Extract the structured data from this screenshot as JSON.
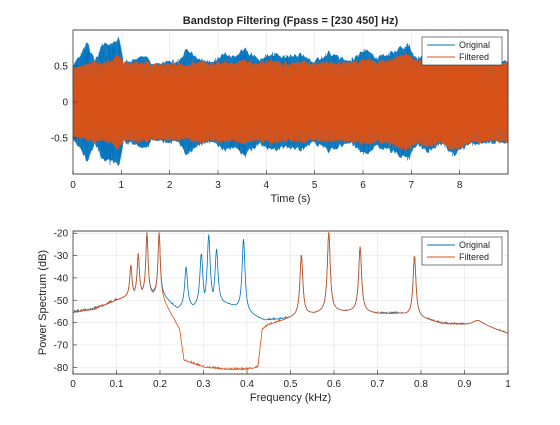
{
  "chart_data": [
    {
      "type": "line",
      "title": "Bandstop Filtering  (Fpass = [230 450] Hz)",
      "xlabel": "Time (s)",
      "ylabel": "",
      "xlim": [
        0,
        9
      ],
      "ylim": [
        -1.0,
        1.0
      ],
      "xticks": [
        0,
        1,
        2,
        3,
        4,
        5,
        6,
        7,
        8
      ],
      "yticks": [
        -0.5,
        0,
        0.5
      ],
      "xtick_labels": [
        "0",
        "1",
        "2",
        "3",
        "4",
        "5",
        "6",
        "7",
        "8"
      ],
      "ytick_labels": [
        "-0.5",
        "0",
        "0.5"
      ],
      "grid": true,
      "legend": {
        "position": "top-right",
        "entries": [
          "Original",
          "Filtered"
        ]
      },
      "series": [
        {
          "name": "Original",
          "color": "#0072BD",
          "envelope": {
            "x": [
              0.0,
              0.3,
              0.45,
              0.62,
              0.95,
              1.05,
              1.55,
              1.62,
              2.2,
              2.35,
              2.6,
              2.85,
              3.15,
              3.3,
              3.55,
              3.85,
              4.1,
              4.35,
              4.75,
              4.95,
              5.3,
              5.7,
              6.05,
              6.3,
              6.6,
              6.95,
              7.1,
              7.35,
              7.65,
              7.85,
              8.2,
              8.6,
              8.9
            ],
            "amplitude": [
              0.52,
              0.86,
              0.6,
              0.84,
              0.92,
              0.58,
              0.66,
              0.55,
              0.6,
              0.78,
              0.62,
              0.58,
              0.7,
              0.66,
              0.78,
              0.6,
              0.72,
              0.66,
              0.7,
              0.58,
              0.72,
              0.58,
              0.76,
              0.64,
              0.72,
              0.84,
              0.62,
              0.72,
              0.6,
              0.78,
              0.62,
              0.58,
              0.6
            ]
          }
        },
        {
          "name": "Filtered",
          "color": "#D95319",
          "envelope": {
            "x": [
              0.0,
              0.3,
              0.45,
              0.62,
              0.95,
              1.05,
              1.55,
              1.62,
              2.2,
              2.35,
              2.6,
              2.85,
              3.15,
              3.3,
              3.55,
              3.85,
              4.1,
              4.35,
              4.75,
              4.95,
              5.3,
              5.7,
              6.05,
              6.3,
              6.6,
              6.95,
              7.1,
              7.35,
              7.65,
              7.85,
              8.2,
              8.6,
              8.9
            ],
            "amplitude": [
              0.52,
              0.55,
              0.58,
              0.55,
              0.68,
              0.56,
              0.58,
              0.55,
              0.56,
              0.54,
              0.6,
              0.56,
              0.58,
              0.55,
              0.6,
              0.56,
              0.6,
              0.56,
              0.58,
              0.56,
              0.58,
              0.56,
              0.62,
              0.58,
              0.62,
              0.7,
              0.6,
              0.66,
              0.58,
              0.72,
              0.6,
              0.56,
              0.58
            ]
          }
        }
      ]
    },
    {
      "type": "line",
      "title": "",
      "xlabel": "Frequency (kHz)",
      "ylabel": "Power Spectrum (dB)",
      "xlim": [
        0,
        1
      ],
      "ylim": [
        -83,
        -19
      ],
      "xticks": [
        0,
        0.1,
        0.2,
        0.3,
        0.4,
        0.5,
        0.6,
        0.7,
        0.8,
        0.9,
        1
      ],
      "yticks": [
        -80,
        -70,
        -60,
        -50,
        -40,
        -30,
        -20
      ],
      "xtick_labels": [
        "0",
        "0.1",
        "0.2",
        "0.3",
        "0.4",
        "0.5",
        "0.6",
        "0.7",
        "0.8",
        "0.9",
        "1"
      ],
      "ytick_labels": [
        "-80",
        "-70",
        "-60",
        "-50",
        "-40",
        "-30",
        "-20"
      ],
      "grid": true,
      "legend": {
        "position": "top-right",
        "entries": [
          "Original",
          "Filtered"
        ]
      },
      "series": [
        {
          "name": "Original",
          "color": "#0072BD",
          "baseline": {
            "x": [
              0.0,
              0.05,
              0.1,
              0.15,
              0.2,
              0.24,
              0.28,
              0.32,
              0.36,
              0.4,
              0.44,
              0.5,
              0.55,
              0.6,
              0.65,
              0.7,
              0.75,
              0.8,
              0.85,
              0.9,
              0.95,
              1.0
            ],
            "y": [
              -55.5,
              -54,
              -50,
              -47,
              -47,
              -54,
              -53,
              -51,
              -52,
              -56,
              -59,
              -58,
              -56,
              -55,
              -55,
              -56,
              -56,
              -58,
              -60.5,
              -61,
              -62,
              -65
            ]
          },
          "peaks": [
            {
              "x": 0.133,
              "y": -34,
              "w": 0.003
            },
            {
              "x": 0.15,
              "y": -29,
              "w": 0.003
            },
            {
              "x": 0.17,
              "y": -19.5,
              "w": 0.003
            },
            {
              "x": 0.198,
              "y": -19.5,
              "w": 0.003
            },
            {
              "x": 0.26,
              "y": -35,
              "w": 0.004
            },
            {
              "x": 0.295,
              "y": -29,
              "w": 0.004
            },
            {
              "x": 0.312,
              "y": -20.5,
              "w": 0.004
            },
            {
              "x": 0.33,
              "y": -27,
              "w": 0.004
            },
            {
              "x": 0.392,
              "y": -22.5,
              "w": 0.004
            },
            {
              "x": 0.525,
              "y": -29.5,
              "w": 0.004
            },
            {
              "x": 0.588,
              "y": -19.5,
              "w": 0.004
            },
            {
              "x": 0.66,
              "y": -26,
              "w": 0.004
            },
            {
              "x": 0.785,
              "y": -30,
              "w": 0.004
            },
            {
              "x": 0.93,
              "y": -59,
              "w": 0.015
            }
          ]
        },
        {
          "name": "Filtered",
          "color": "#D95319",
          "baseline": {
            "x": [
              0.0,
              0.05,
              0.1,
              0.15,
              0.2,
              0.23,
              0.245,
              0.255,
              0.3,
              0.35,
              0.4,
              0.425,
              0.435,
              0.45,
              0.5,
              0.55,
              0.6,
              0.65,
              0.7,
              0.75,
              0.8,
              0.85,
              0.9,
              0.95,
              1.0
            ],
            "y": [
              -55.5,
              -54,
              -50,
              -47,
              -48,
              -58,
              -63,
              -77,
              -80,
              -81,
              -81,
              -80,
              -63,
              -61,
              -58,
              -56,
              -55,
              -55,
              -56,
              -56,
              -58,
              -60.5,
              -61,
              -62,
              -65
            ]
          },
          "peaks": [
            {
              "x": 0.133,
              "y": -34,
              "w": 0.003
            },
            {
              "x": 0.15,
              "y": -29,
              "w": 0.003
            },
            {
              "x": 0.17,
              "y": -19.5,
              "w": 0.003
            },
            {
              "x": 0.198,
              "y": -19.5,
              "w": 0.003
            },
            {
              "x": 0.525,
              "y": -29.5,
              "w": 0.004
            },
            {
              "x": 0.588,
              "y": -19.5,
              "w": 0.004
            },
            {
              "x": 0.66,
              "y": -26,
              "w": 0.004
            },
            {
              "x": 0.785,
              "y": -30,
              "w": 0.004
            },
            {
              "x": 0.93,
              "y": -59,
              "w": 0.015
            }
          ]
        }
      ]
    }
  ]
}
